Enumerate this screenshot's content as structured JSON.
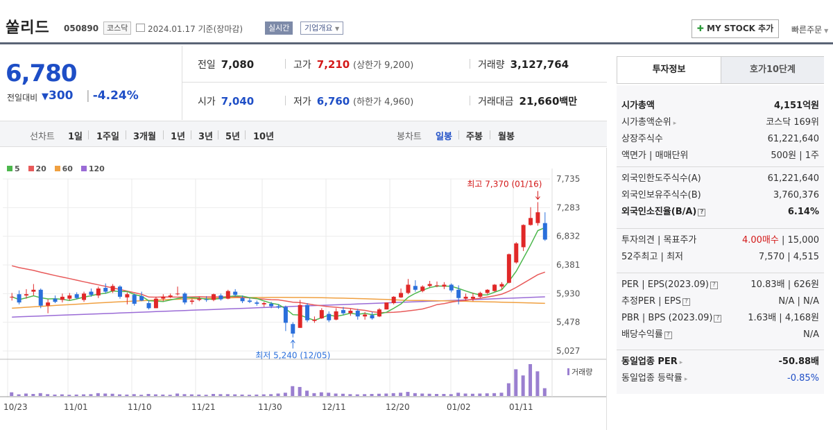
{
  "header": {
    "name": "쏠리드",
    "code": "050890",
    "market": "코스닥",
    "date": "2024.01.17 기준(장마감)",
    "realtime": "실시간",
    "corp_info": "기업개요",
    "mystock": "MY STOCK 추가",
    "quick_order": "빠른주문"
  },
  "price": {
    "current": "6,780",
    "change_label": "전일대비",
    "change": "300",
    "change_pct": "-4.24%"
  },
  "quotes": {
    "prev_label": "전일",
    "prev": "7,080",
    "high_label": "고가",
    "high": "7,210",
    "upper_limit": "(상한가 9,200)",
    "volume_label": "거래량",
    "volume": "3,127,764",
    "open_label": "시가",
    "open": "7,040",
    "low_label": "저가",
    "low": "6,760",
    "lower_limit": "(하한가 4,960)",
    "amount_label": "거래대금",
    "amount": "21,660",
    "amount_unit": "백만"
  },
  "period": {
    "line_label": "선차트",
    "line_items": [
      "1일",
      "1주일",
      "3개월",
      "1년",
      "3년",
      "5년",
      "10년"
    ],
    "candle_label": "봉차트",
    "candle_items": [
      "일봉",
      "주봉",
      "월봉"
    ],
    "candle_active": "일봉"
  },
  "colors": {
    "up": "#e02828",
    "down": "#2a6fdb",
    "ma5": "#4cb74c",
    "ma20": "#e85a5a",
    "ma60": "#f0a040",
    "ma120": "#9a6bd6",
    "volume": "#9a7fd0"
  },
  "chart_data": {
    "type": "candlestick",
    "legend": [
      "5",
      "20",
      "60",
      "120"
    ],
    "y_ticks": [
      "7,735",
      "7,283",
      "6,832",
      "6,381",
      "5,930",
      "5,478",
      "5,027"
    ],
    "ylim": [
      5027,
      7735
    ],
    "x_ticks": [
      "10/23",
      "11/01",
      "11/10",
      "11/21",
      "11/30",
      "12/11",
      "12/20",
      "01/02",
      "01/11"
    ],
    "max_label": "최고 7,370 (01/16)",
    "min_label": "최저 5,240 (12/05)",
    "volume_label": "거래량",
    "candles": [
      [
        5880,
        5940,
        5820,
        5880
      ],
      [
        5920,
        5980,
        5760,
        5790
      ],
      [
        5900,
        6000,
        5850,
        5920
      ],
      [
        5960,
        6080,
        5900,
        5990
      ],
      [
        5990,
        6010,
        5700,
        5740
      ],
      [
        5740,
        5840,
        5620,
        5790
      ],
      [
        5850,
        5900,
        5780,
        5800
      ],
      [
        5830,
        5930,
        5790,
        5880
      ],
      [
        5850,
        5940,
        5820,
        5900
      ],
      [
        5920,
        5950,
        5840,
        5860
      ],
      [
        5830,
        5960,
        5800,
        5930
      ],
      [
        5960,
        6010,
        5880,
        5910
      ],
      [
        5900,
        6040,
        5860,
        6010
      ],
      [
        6020,
        6090,
        5930,
        5960
      ],
      [
        5970,
        6080,
        5940,
        6050
      ],
      [
        6040,
        6060,
        5850,
        5880
      ],
      [
        5870,
        5950,
        5760,
        5920
      ],
      [
        5910,
        5930,
        5740,
        5770
      ],
      [
        5890,
        5960,
        5810,
        5820
      ],
      [
        5780,
        5820,
        5680,
        5700
      ],
      [
        5700,
        5880,
        5700,
        5850
      ],
      [
        5850,
        5920,
        5810,
        5880
      ],
      [
        5880,
        5930,
        5860,
        5900
      ],
      [
        5920,
        6040,
        5900,
        5930
      ],
      [
        5930,
        5950,
        5760,
        5790
      ],
      [
        5800,
        5850,
        5760,
        5820
      ],
      [
        5830,
        5880,
        5810,
        5850
      ],
      [
        5840,
        5890,
        5800,
        5830
      ],
      [
        5830,
        5930,
        5810,
        5920
      ],
      [
        5900,
        5930,
        5820,
        5840
      ],
      [
        5850,
        5990,
        5840,
        5970
      ],
      [
        5960,
        6000,
        5880,
        5910
      ],
      [
        5860,
        5900,
        5780,
        5810
      ],
      [
        5820,
        5860,
        5780,
        5800
      ],
      [
        5790,
        5820,
        5740,
        5770
      ],
      [
        5760,
        5800,
        5720,
        5780
      ],
      [
        5770,
        5800,
        5700,
        5730
      ],
      [
        5730,
        5760,
        5690,
        5710
      ],
      [
        5720,
        5740,
        5340,
        5470
      ],
      [
        5450,
        5480,
        5240,
        5300
      ],
      [
        5390,
        5830,
        5390,
        5750
      ],
      [
        5750,
        5780,
        5480,
        5510
      ],
      [
        5500,
        5570,
        5470,
        5520
      ],
      [
        5540,
        5700,
        5530,
        5670
      ],
      [
        5610,
        5650,
        5480,
        5510
      ],
      [
        5520,
        5700,
        5510,
        5650
      ],
      [
        5670,
        5720,
        5590,
        5620
      ],
      [
        5620,
        5690,
        5580,
        5660
      ],
      [
        5660,
        5690,
        5520,
        5570
      ],
      [
        5570,
        5640,
        5520,
        5600
      ],
      [
        5590,
        5640,
        5520,
        5540
      ],
      [
        5570,
        5700,
        5560,
        5680
      ],
      [
        5680,
        5790,
        5680,
        5790
      ],
      [
        5780,
        5890,
        5760,
        5880
      ],
      [
        5870,
        6010,
        5860,
        5940
      ],
      [
        5940,
        6160,
        5920,
        6070
      ],
      [
        6050,
        6140,
        5960,
        5990
      ],
      [
        5970,
        6060,
        5950,
        6040
      ],
      [
        6050,
        6130,
        6030,
        6080
      ],
      [
        6060,
        6120,
        6030,
        6060
      ],
      [
        6040,
        6110,
        6000,
        6070
      ],
      [
        6070,
        6090,
        5950,
        5980
      ],
      [
        5990,
        6060,
        5760,
        5860
      ],
      [
        5850,
        5930,
        5820,
        5880
      ],
      [
        5850,
        5940,
        5810,
        5880
      ],
      [
        5880,
        5960,
        5860,
        5940
      ],
      [
        5940,
        6000,
        5920,
        5990
      ],
      [
        5970,
        6080,
        5960,
        6070
      ],
      [
        6040,
        6110,
        6000,
        6080
      ],
      [
        6100,
        6560,
        6090,
        6550
      ],
      [
        6420,
        6740,
        6400,
        6720
      ],
      [
        6660,
        7020,
        6600,
        7010
      ],
      [
        7010,
        7290,
        7000,
        7120
      ],
      [
        7040,
        7370,
        7000,
        7210
      ],
      [
        7040,
        7210,
        6760,
        6780
      ]
    ],
    "volumes": [
      18,
      8,
      12,
      10,
      14,
      9,
      7,
      8,
      6,
      7,
      8,
      9,
      14,
      12,
      11,
      8,
      7,
      9,
      6,
      10,
      8,
      7,
      6,
      12,
      9,
      8,
      7,
      6,
      10,
      9,
      9,
      8,
      7,
      6,
      7,
      8,
      9,
      12,
      16,
      48,
      44,
      26,
      14,
      18,
      16,
      12,
      11,
      9,
      8,
      9,
      10,
      11,
      12,
      14,
      16,
      20,
      14,
      12,
      11,
      10,
      10,
      9,
      16,
      12,
      11,
      12,
      13,
      14,
      16,
      62,
      130,
      100,
      155,
      120,
      38
    ]
  },
  "invest": {
    "tab1": "투자정보",
    "tab2": "호가10단계",
    "rows1": [
      {
        "k": "시가총액",
        "v": "4,151억원",
        "bold": true
      },
      {
        "k": "시가총액순위",
        "v": "코스닥 169위",
        "arrow": true
      },
      {
        "k": "상장주식수",
        "v": "61,221,640"
      },
      {
        "k": "액면가 | 매매단위",
        "v": "500원 | 1주"
      }
    ],
    "rows2": [
      {
        "k": "외국인한도주식수(A)",
        "v": "61,221,640"
      },
      {
        "k": "외국인보유주식수(B)",
        "v": "3,760,376"
      },
      {
        "k": "외국인소진율(B/A)",
        "v": "6.14%",
        "bold": true,
        "q": true
      }
    ],
    "rows3": [
      {
        "k": "투자의견 | 목표주가",
        "v_red": "4.00매수",
        "v": " | 15,000"
      },
      {
        "k": "52주최고 | 최저",
        "v": "7,570 | 4,515"
      }
    ],
    "rows4": [
      {
        "k": "PER | EPS(2023.09)",
        "v": "10.83배 | 626원",
        "q": true
      },
      {
        "k": "추정PER | EPS",
        "v": "N/A | N/A",
        "q": true
      },
      {
        "k": "PBR | BPS (2023.09)",
        "v": "1.63배 | 4,168원",
        "q": true
      },
      {
        "k": "배당수익률",
        "v": "N/A",
        "q": true
      }
    ],
    "rows5": [
      {
        "k": "동일업종 PER",
        "v": "-50.88배",
        "bold": true,
        "arrow": true
      },
      {
        "k": "동일업종 등락률",
        "v_blue": "-0.85%",
        "arrow": true
      }
    ]
  }
}
